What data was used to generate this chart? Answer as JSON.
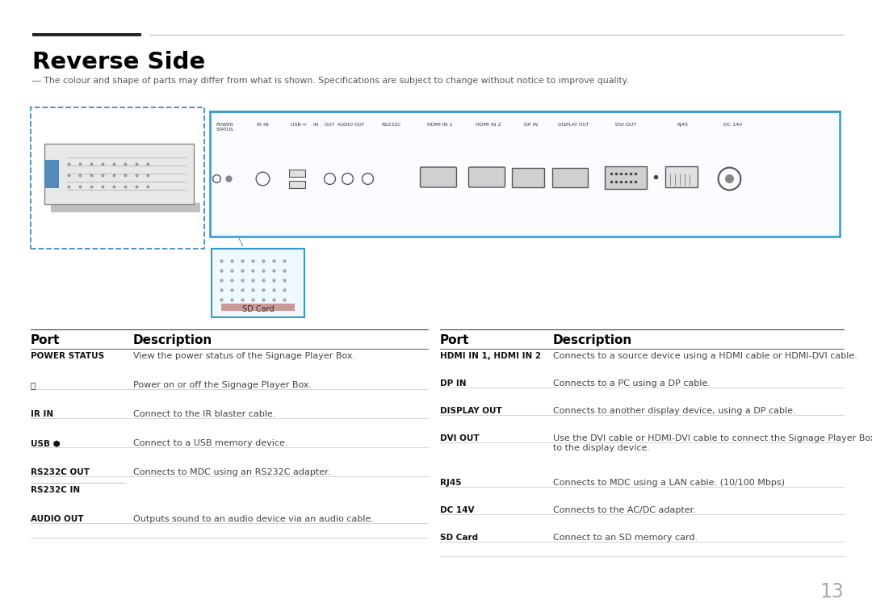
{
  "title": "Reverse Side",
  "subtitle": "― The colour and shape of parts may differ from what is shown. Specifications are subject to change without notice to improve quality.",
  "page_number": "13",
  "bg_color": "#ffffff",
  "left_table": {
    "rows": [
      [
        "POWER STATUS",
        "View the power status of the Signage Player Box."
      ],
      [
        "⏻",
        "Power on or off the Signage Player Box."
      ],
      [
        "IR IN",
        "Connect to the IR blaster cable."
      ],
      [
        "USB ⬢",
        "Connect to a USB memory device."
      ],
      [
        "RS232C OUT",
        "Connects to MDC using an RS232C adapter."
      ],
      [
        "RS232C IN",
        ""
      ],
      [
        "AUDIO OUT",
        "Outputs sound to an audio device via an audio cable."
      ]
    ]
  },
  "right_table": {
    "rows": [
      [
        "HDMI IN 1, HDMI IN 2",
        "Connects to a source device using a HDMI cable or HDMI-DVI cable."
      ],
      [
        "DP IN",
        "Connects to a PC using a DP cable."
      ],
      [
        "DISPLAY OUT",
        "Connects to another display device, using a DP cable."
      ],
      [
        "DVI OUT",
        "Use the DVI cable or HDMI-DVI cable to connect the Signage Player Box\nto the display device."
      ],
      [
        "RJ45",
        "Connects to MDC using a LAN cable. (10/100 Mbps)"
      ],
      [
        "DC 14V",
        "Connects to the AC/DC adapter."
      ],
      [
        "SD Card",
        "Connect to an SD memory card."
      ]
    ]
  }
}
